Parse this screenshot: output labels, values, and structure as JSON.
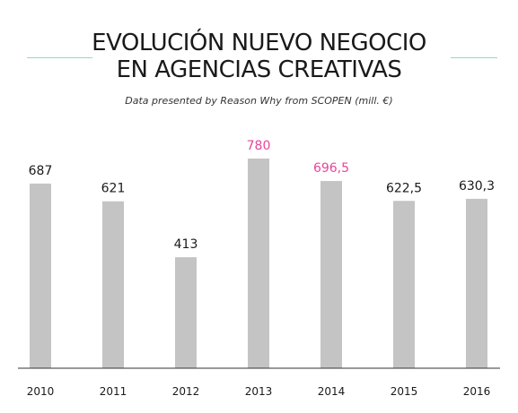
{
  "header": {
    "title_line1": "EVOLUCIÓN NUEVO NEGOCIO",
    "title_line2": "EN AGENCIAS CREATIVAS",
    "subtitle": "Data presented by Reason Why from SCOPEN (mill. €)"
  },
  "colors": {
    "bar": "#c4c4c4",
    "label_default": "#1a1a1a",
    "label_highlight": "#e8459a",
    "accent_line": "#8fd8d3",
    "axis": "#333333"
  },
  "chart_data": {
    "type": "bar",
    "title": "EVOLUCIÓN NUEVO NEGOCIO EN AGENCIAS CREATIVAS",
    "subtitle": "Data presented by Reason Why from SCOPEN (mill. €)",
    "xlabel": "",
    "ylabel": "",
    "categories": [
      "2010",
      "2011",
      "2012",
      "2013",
      "2014",
      "2015",
      "2016"
    ],
    "values": [
      687,
      621,
      413,
      780,
      696.5,
      622.5,
      630.3
    ],
    "value_labels": [
      "687",
      "621",
      "413",
      "780",
      "696,5",
      "622,5",
      "630,3"
    ],
    "highlighted": [
      "2013",
      "2014"
    ],
    "ylim": [
      0,
      800
    ],
    "grid": false,
    "legend": "none"
  }
}
